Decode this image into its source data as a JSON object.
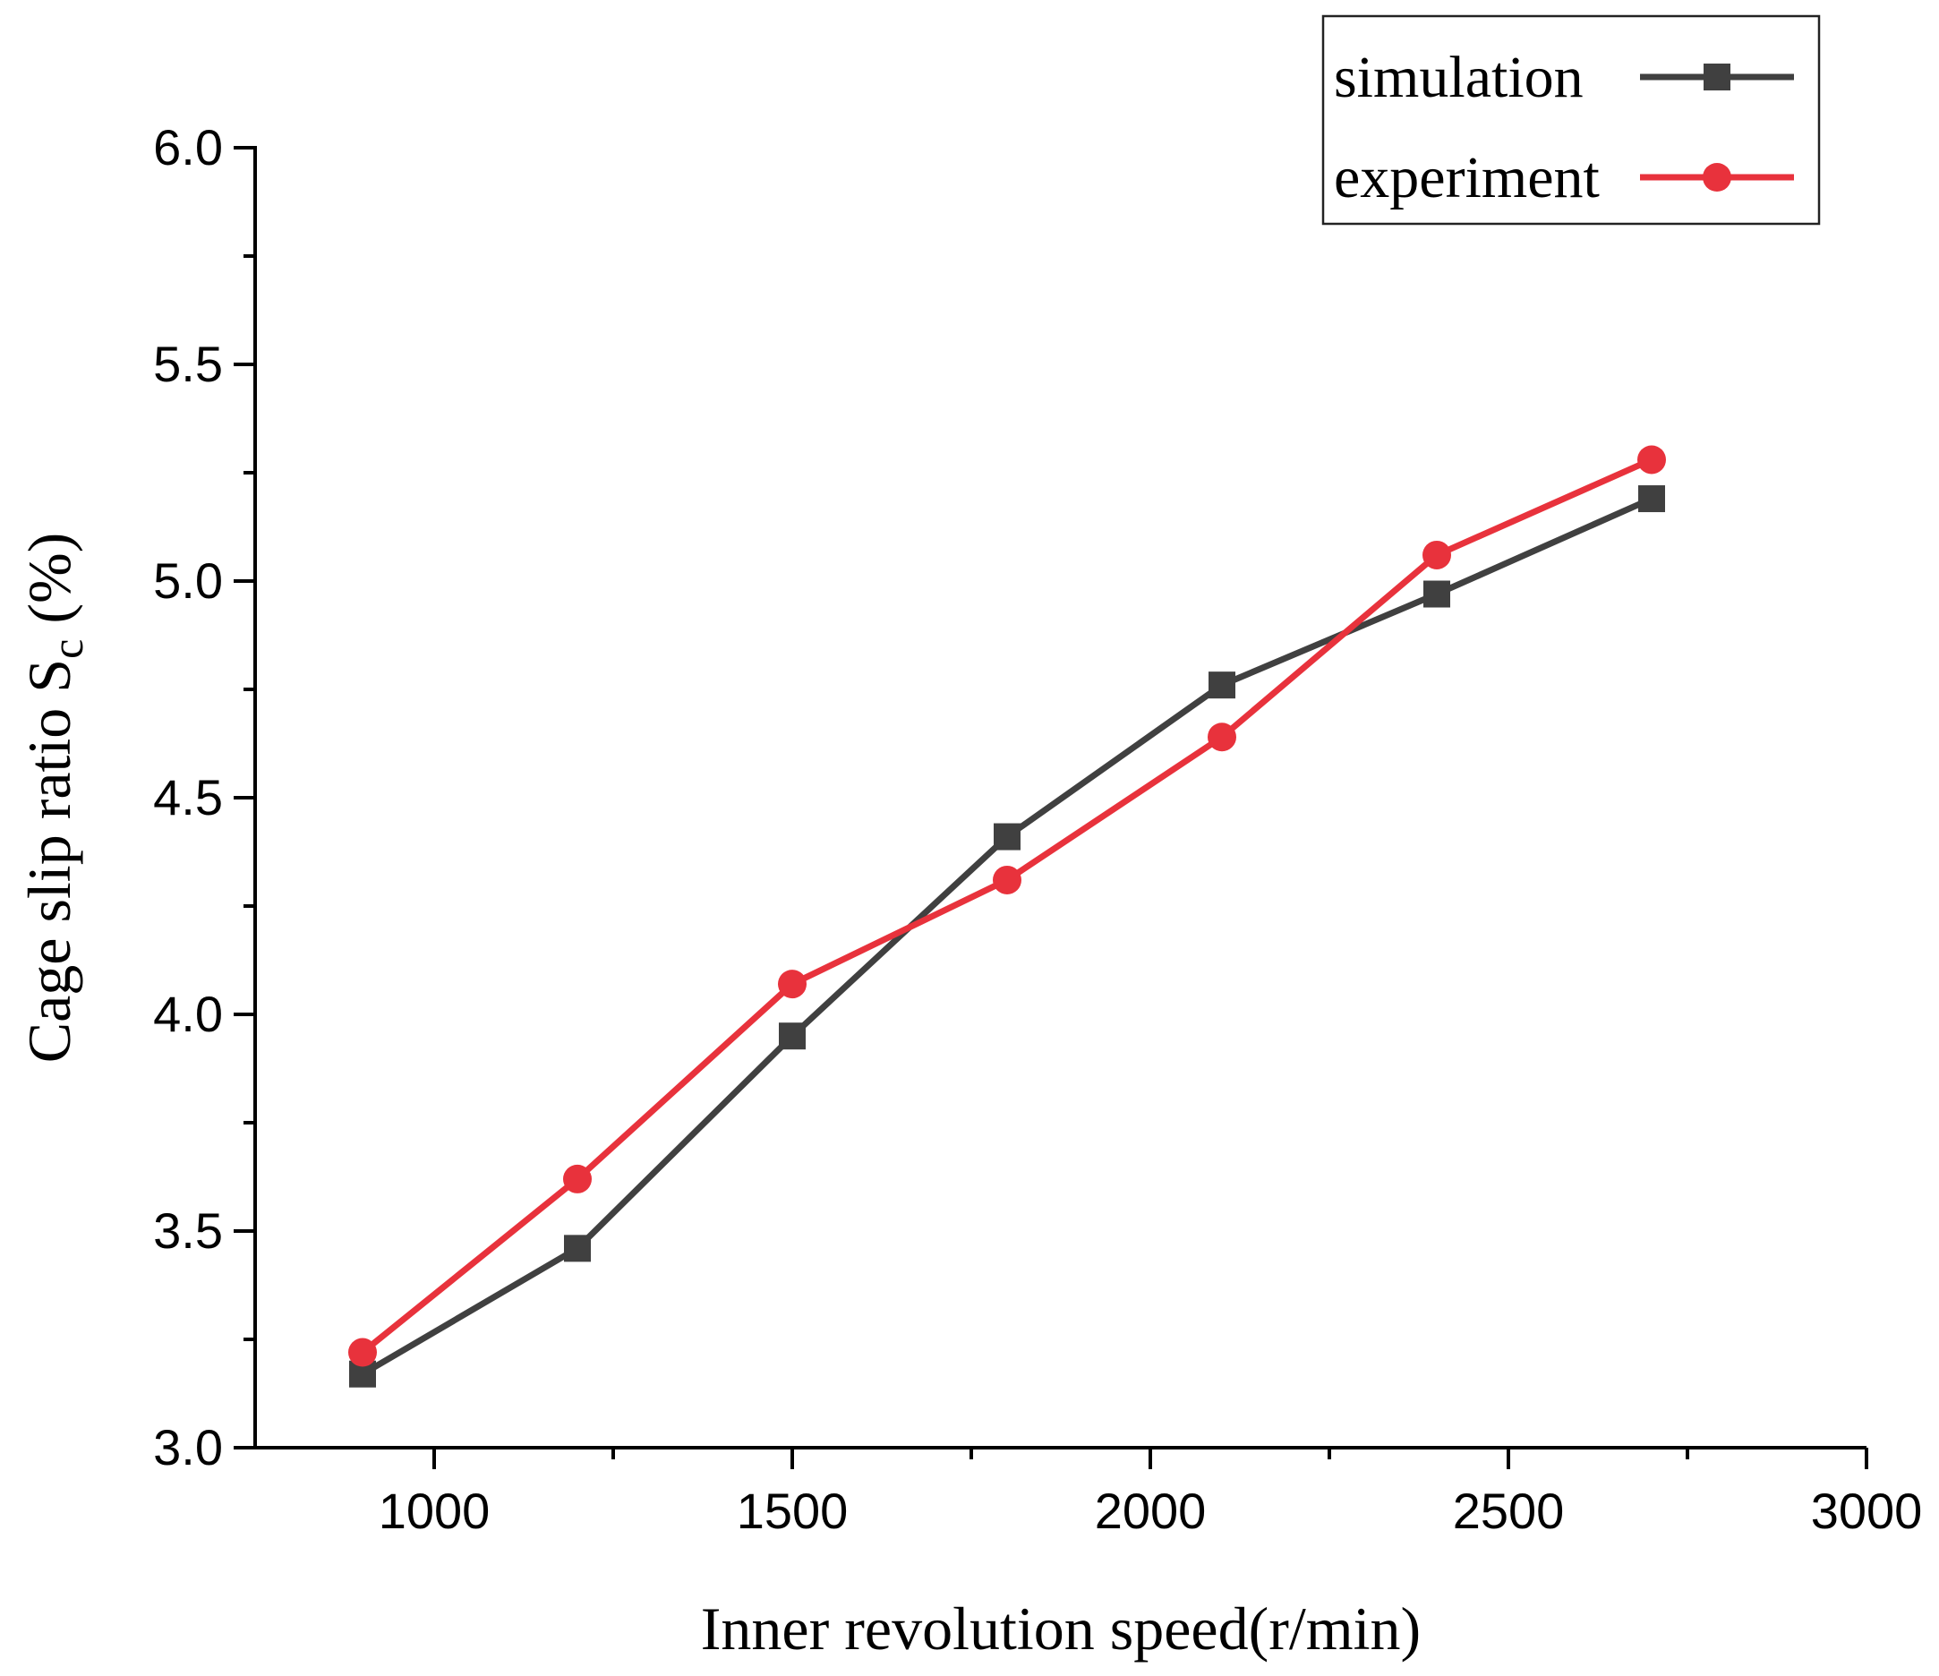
{
  "chart_data": {
    "type": "line",
    "title": "",
    "xlabel": "Inner revolution speed(r/min)",
    "ylabel": {
      "main": "Cage slip ratio S",
      "subscript": "c",
      "suffix": " (%)"
    },
    "xlim": [
      750,
      3000
    ],
    "ylim": [
      3.0,
      6.0
    ],
    "x_ticks": [
      1000,
      1500,
      2000,
      2500,
      3000
    ],
    "x_tick_labels": [
      "1000",
      "1500",
      "2000",
      "2500",
      "3000"
    ],
    "y_ticks": [
      3.0,
      3.5,
      4.0,
      4.5,
      5.0,
      5.5,
      6.0
    ],
    "y_tick_labels": [
      "3.0",
      "3.5",
      "4.0",
      "4.5",
      "5.0",
      "5.5",
      "6.0"
    ],
    "grid": false,
    "legend_position": "top-right",
    "x": [
      900,
      1200,
      1500,
      1800,
      2100,
      2400,
      2700
    ],
    "series": [
      {
        "name": "simulation",
        "marker": "square",
        "color": "#404040",
        "values": [
          3.17,
          3.46,
          3.95,
          4.41,
          4.76,
          4.97,
          5.19
        ]
      },
      {
        "name": "experiment",
        "marker": "circle",
        "color": "#e8323c",
        "values": [
          3.22,
          3.62,
          4.07,
          4.31,
          4.64,
          5.06,
          5.28
        ]
      }
    ]
  }
}
